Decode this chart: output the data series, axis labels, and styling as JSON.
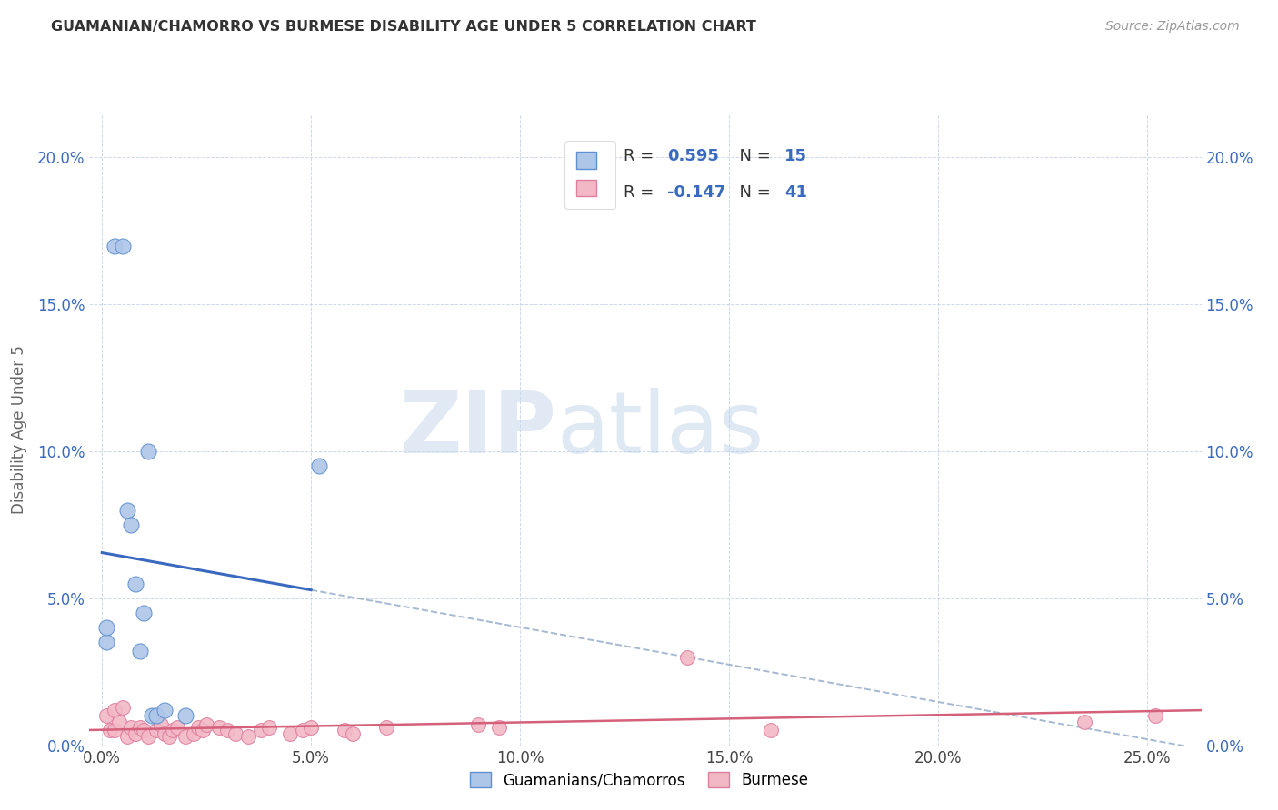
{
  "title": "GUAMANIAN/CHAMORRO VS BURMESE DISABILITY AGE UNDER 5 CORRELATION CHART",
  "source": "Source: ZipAtlas.com",
  "xlabel_vals": [
    0.0,
    0.05,
    0.1,
    0.15,
    0.2,
    0.25
  ],
  "ylabel_vals": [
    0.0,
    0.05,
    0.1,
    0.15,
    0.2
  ],
  "ylim": [
    0.0,
    0.215
  ],
  "xlim": [
    -0.003,
    0.263
  ],
  "guamanian_R": 0.595,
  "guamanian_N": 15,
  "burmese_R": -0.147,
  "burmese_N": 41,
  "guamanian_color": "#aec6e8",
  "burmese_color": "#f2b8c6",
  "guamanian_line_color": "#3a6abf",
  "burmese_line_color": "#d4607a",
  "guamanian_edge_color": "#6090d0",
  "burmese_edge_color": "#e080a0",
  "legend_label_1": "Guamanians/Chamorros",
  "legend_label_2": "Burmese",
  "ylabel": "Disability Age Under 5",
  "watermark_zip": "ZIP",
  "watermark_atlas": "atlas",
  "grid_color": "#c8d4e8",
  "guamanian_x": [
    0.001,
    0.001,
    0.003,
    0.005,
    0.006,
    0.007,
    0.008,
    0.009,
    0.01,
    0.011,
    0.012,
    0.013,
    0.015,
    0.052,
    0.02
  ],
  "guamanian_y": [
    0.035,
    0.04,
    0.17,
    0.17,
    0.08,
    0.075,
    0.055,
    0.032,
    0.045,
    0.1,
    0.01,
    0.01,
    0.012,
    0.095,
    0.01
  ],
  "burmese_x": [
    0.001,
    0.002,
    0.003,
    0.003,
    0.004,
    0.005,
    0.006,
    0.007,
    0.008,
    0.009,
    0.01,
    0.011,
    0.013,
    0.014,
    0.015,
    0.016,
    0.017,
    0.018,
    0.02,
    0.022,
    0.023,
    0.024,
    0.025,
    0.028,
    0.03,
    0.032,
    0.035,
    0.038,
    0.04,
    0.045,
    0.048,
    0.05,
    0.058,
    0.06,
    0.068,
    0.09,
    0.095,
    0.14,
    0.16,
    0.235,
    0.252
  ],
  "burmese_y": [
    0.01,
    0.005,
    0.012,
    0.005,
    0.008,
    0.013,
    0.003,
    0.006,
    0.004,
    0.006,
    0.005,
    0.003,
    0.005,
    0.007,
    0.004,
    0.003,
    0.005,
    0.006,
    0.003,
    0.004,
    0.006,
    0.005,
    0.007,
    0.006,
    0.005,
    0.004,
    0.003,
    0.005,
    0.006,
    0.004,
    0.005,
    0.006,
    0.005,
    0.004,
    0.006,
    0.007,
    0.006,
    0.03,
    0.005,
    0.008,
    0.01
  ]
}
